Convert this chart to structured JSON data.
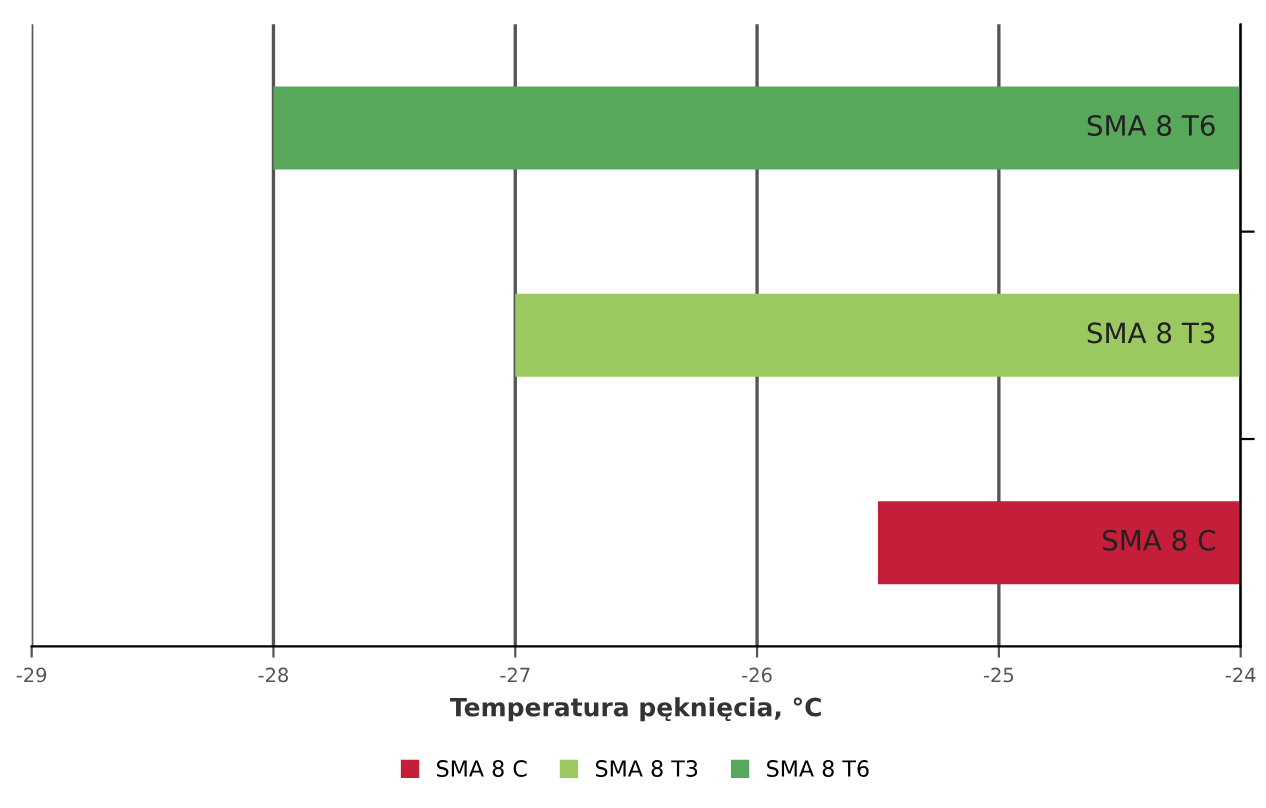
{
  "chart_data": {
    "type": "bar",
    "orientation": "horizontal",
    "xlabel": "Temperatura pęknięcia, °C",
    "categories": [
      null,
      null,
      null
    ],
    "series": [
      {
        "name": "SMA 8 C",
        "color": "#c41e3a",
        "values": [
          null,
          null,
          -25.5
        ]
      },
      {
        "name": "SMA 8 T3",
        "color": "#9bc95f",
        "values": [
          null,
          -27,
          null
        ]
      },
      {
        "name": "SMA 8 T6",
        "color": "#58a85c",
        "values": [
          -28,
          null,
          null
        ]
      }
    ],
    "xlim": [
      -29,
      -24
    ],
    "xticks": [
      -29,
      -28,
      -27,
      -26,
      -25,
      -24
    ],
    "grid": "x",
    "legend": "bottom",
    "tick_labels": "x"
  }
}
